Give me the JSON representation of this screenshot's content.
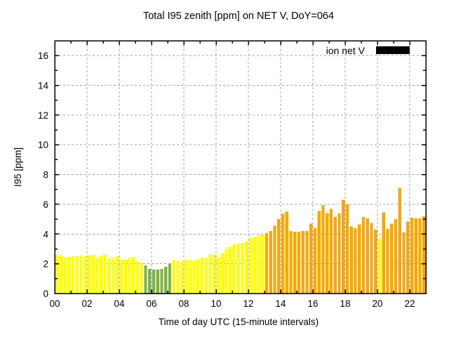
{
  "chart_data": {
    "type": "bar",
    "title": "Total I95 zenith [ppm] on NET V, DoY=064",
    "xlabel": "Time of day UTC (15-minute intervals)",
    "ylabel": "I95 [ppm]",
    "xlim_hours": [
      0,
      23
    ],
    "ylim": [
      0,
      17
    ],
    "x_start_hour": 0.0,
    "x_step_hours": 0.25,
    "grid": true,
    "xtick_hours": [
      0,
      2,
      4,
      6,
      8,
      10,
      12,
      14,
      16,
      18,
      20,
      22
    ],
    "xtick_labels": [
      "00",
      "02",
      "04",
      "06",
      "08",
      "10",
      "12",
      "14",
      "16",
      "18",
      "20",
      "22"
    ],
    "ytick_values": [
      0,
      2,
      4,
      6,
      8,
      10,
      12,
      14,
      16
    ],
    "legend": {
      "label": "ion net V",
      "swatch_color": "#000000",
      "position": "top-right-inside"
    },
    "palette": {
      "y": "#ffff00",
      "g": "#7cb342",
      "o": "#ffa500"
    },
    "bar_color_codes": "yyyyyyyyyyyyyyyyyyyyyygggggggyyyyyyyyyyyyyyyyyyyyyyyooooooooooooooooooooooooooooyooooooooooo",
    "values": [
      2.6,
      2.55,
      2.4,
      2.45,
      2.5,
      2.5,
      2.55,
      2.5,
      2.55,
      2.6,
      2.4,
      2.55,
      2.6,
      2.35,
      2.4,
      2.5,
      2.25,
      2.3,
      2.4,
      2.45,
      2.15,
      2.05,
      1.9,
      1.65,
      1.6,
      1.6,
      1.65,
      1.8,
      2.0,
      2.25,
      2.2,
      2.15,
      2.3,
      2.25,
      2.2,
      2.3,
      2.4,
      2.4,
      2.6,
      2.65,
      2.4,
      2.7,
      3.0,
      3.15,
      3.3,
      3.35,
      3.4,
      3.5,
      3.75,
      3.8,
      3.9,
      3.95,
      4.05,
      4.2,
      4.55,
      5.0,
      5.35,
      5.5,
      4.2,
      4.15,
      4.15,
      4.2,
      4.2,
      4.7,
      4.4,
      5.55,
      5.95,
      5.4,
      5.7,
      5.15,
      5.4,
      6.3,
      6.0,
      4.5,
      4.4,
      4.65,
      5.15,
      5.05,
      4.75,
      4.3,
      3.7,
      5.45,
      4.35,
      4.7,
      5.0,
      7.1,
      4.1,
      4.85,
      5.1,
      5.05,
      5.05,
      5.2
    ]
  }
}
